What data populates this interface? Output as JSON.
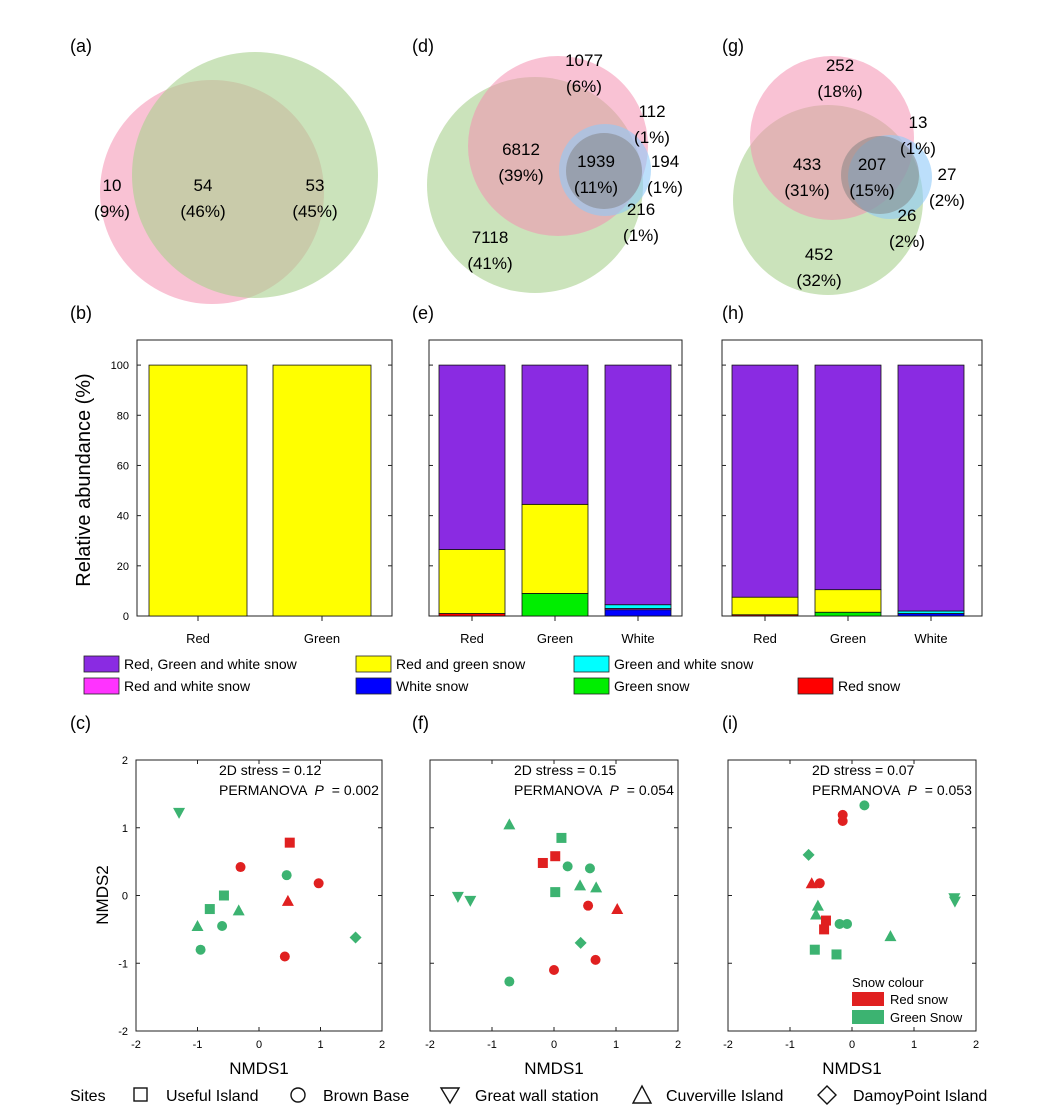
{
  "panels": {
    "a": "(a)",
    "b": "(b)",
    "c": "(c)",
    "d": "(d)",
    "e": "(e)",
    "f": "(f)",
    "g": "(g)",
    "h": "(h)",
    "i": "(i)"
  },
  "colors": {
    "pink": "#f48fb1",
    "green_circle": "#a9d18e",
    "blue_circle": "#90caf9",
    "grey_circle": "#7f7f7f",
    "all": "#8a2be2",
    "red_green": "#ffff00",
    "green_white": "#00ffff",
    "red_white": "#ff33ff",
    "white": "#0000ff",
    "green": "#00ee00",
    "red": "#ff0000",
    "red_snow_marker": "#e02020",
    "green_snow_marker": "#3cb371"
  },
  "venn": {
    "a": {
      "regions": [
        {
          "count": "10",
          "pct": "(9%)"
        },
        {
          "count": "54",
          "pct": "(46%)"
        },
        {
          "count": "53",
          "pct": "(45%)"
        }
      ]
    },
    "d": {
      "regions": [
        {
          "count": "1077",
          "pct": "(6%)"
        },
        {
          "count": "112",
          "pct": "(1%)"
        },
        {
          "count": "6812",
          "pct": "(39%)"
        },
        {
          "count": "1939",
          "pct": "(11%)"
        },
        {
          "count": "194",
          "pct": "(1%)"
        },
        {
          "count": "216",
          "pct": "(1%)"
        },
        {
          "count": "7118",
          "pct": "(41%)"
        }
      ]
    },
    "g": {
      "regions": [
        {
          "count": "252",
          "pct": "(18%)"
        },
        {
          "count": "13",
          "pct": "(1%)"
        },
        {
          "count": "433",
          "pct": "(31%)"
        },
        {
          "count": "207",
          "pct": "(15%)"
        },
        {
          "count": "27",
          "pct": "(2%)"
        },
        {
          "count": "26",
          "pct": "(2%)"
        },
        {
          "count": "452",
          "pct": "(32%)"
        }
      ]
    }
  },
  "legend_categories": [
    {
      "label": "Red, Green and white snow",
      "color": "#8a2be2"
    },
    {
      "label": "Red and green snow",
      "color": "#ffff00"
    },
    {
      "label": "Green and white snow",
      "color": "#00ffff"
    },
    {
      "label": "Red and white snow",
      "color": "#ff33ff"
    },
    {
      "label": "White snow",
      "color": "#0000ff"
    },
    {
      "label": "Green snow",
      "color": "#00ee00"
    },
    {
      "label": "Red snow",
      "color": "#ff0000"
    }
  ],
  "bar_axis": {
    "ylabel": "Relative abundance (%)",
    "ylim": [
      0,
      110
    ],
    "yticks": [
      "0",
      "20",
      "40",
      "60",
      "80",
      "100"
    ]
  },
  "nmds_axis": {
    "xlabel": "NMDS1",
    "ylabel": "NMDS2",
    "xticks": [
      "-2",
      "-1",
      "0",
      "1",
      "2"
    ],
    "yticks": [
      "-2",
      "-1",
      "0",
      "1",
      "2"
    ]
  },
  "nmds_text": {
    "c": {
      "stress": "2D stress = 0.12",
      "perm": "PERMANOVA",
      "p": "P",
      "pval": "= 0.002"
    },
    "f": {
      "stress": "2D stress = 0.15",
      "perm": "PERMANOVA",
      "p": "P",
      "pval": "= 0.054"
    },
    "i": {
      "stress": "2D stress = 0.07",
      "perm": "PERMANOVA",
      "p": "P",
      "pval": "= 0.053"
    }
  },
  "snow_legend": {
    "title": "Snow colour",
    "items": [
      {
        "label": "Red snow",
        "color": "#e02020"
      },
      {
        "label": "Green Snow",
        "color": "#3cb371"
      }
    ]
  },
  "sites_legend": {
    "title": "Sites",
    "items": [
      {
        "label": "Useful Island",
        "shape": "square"
      },
      {
        "label": "Brown Base",
        "shape": "circle"
      },
      {
        "label": "Great wall station",
        "shape": "triangle-down"
      },
      {
        "label": "Cuverville Island",
        "shape": "triangle-up"
      },
      {
        "label": "DamoyPoint Island",
        "shape": "diamond"
      }
    ]
  },
  "chart_data": [
    {
      "type": "bar",
      "panel": "b",
      "categories": [
        "Red",
        "Green"
      ],
      "stacked": true,
      "ylabel": "Relative abundance (%)",
      "ylim": [
        0,
        110
      ],
      "series": [
        {
          "name": "Red, Green and white snow",
          "values": [
            0,
            0
          ]
        },
        {
          "name": "Red and green snow",
          "values": [
            100,
            100
          ]
        },
        {
          "name": "Green and white snow",
          "values": [
            0,
            0
          ]
        },
        {
          "name": "Red and white snow",
          "values": [
            0,
            0
          ]
        },
        {
          "name": "White snow",
          "values": [
            0,
            0
          ]
        },
        {
          "name": "Green snow",
          "values": [
            0,
            0
          ]
        },
        {
          "name": "Red snow",
          "values": [
            0,
            0
          ]
        }
      ]
    },
    {
      "type": "bar",
      "panel": "e",
      "categories": [
        "Red",
        "Green",
        "White"
      ],
      "stacked": true,
      "ylim": [
        0,
        110
      ],
      "series": [
        {
          "name": "Red, Green and white snow",
          "values": [
            73.5,
            55.5,
            95.5
          ]
        },
        {
          "name": "Red and green snow",
          "values": [
            25.5,
            35.5,
            0
          ]
        },
        {
          "name": "Green and white snow",
          "values": [
            0,
            0,
            1.5
          ]
        },
        {
          "name": "Red and white snow",
          "values": [
            0,
            0,
            0.5
          ]
        },
        {
          "name": "White snow",
          "values": [
            0,
            0,
            2.5
          ]
        },
        {
          "name": "Green snow",
          "values": [
            0,
            9,
            0
          ]
        },
        {
          "name": "Red snow",
          "values": [
            1,
            0,
            0
          ]
        }
      ]
    },
    {
      "type": "bar",
      "panel": "h",
      "categories": [
        "Red",
        "Green",
        "White"
      ],
      "stacked": true,
      "ylim": [
        0,
        110
      ],
      "series": [
        {
          "name": "Red, Green and white snow",
          "values": [
            92.5,
            89.5,
            98
          ]
        },
        {
          "name": "Red and green snow",
          "values": [
            7,
            9,
            0
          ]
        },
        {
          "name": "Green and white snow",
          "values": [
            0,
            0,
            1
          ]
        },
        {
          "name": "Red and white snow",
          "values": [
            0,
            0,
            0
          ]
        },
        {
          "name": "White snow",
          "values": [
            0,
            0,
            1
          ]
        },
        {
          "name": "Green snow",
          "values": [
            0,
            1.5,
            0
          ]
        },
        {
          "name": "Red snow",
          "values": [
            0.5,
            0,
            0
          ]
        }
      ]
    },
    {
      "type": "scatter",
      "panel": "c",
      "xlim": [
        -2,
        2
      ],
      "ylim": [
        -2,
        2
      ],
      "xlabel": "NMDS1",
      "ylabel": "NMDS2",
      "points": [
        {
          "x": -1.3,
          "y": 1.22,
          "site": "triangle-down",
          "color": "green"
        },
        {
          "x": 0.5,
          "y": 0.78,
          "site": "square",
          "color": "red"
        },
        {
          "x": -0.3,
          "y": 0.42,
          "site": "circle",
          "color": "red"
        },
        {
          "x": 0.45,
          "y": 0.3,
          "site": "circle",
          "color": "green"
        },
        {
          "x": 0.97,
          "y": 0.18,
          "site": "circle",
          "color": "red"
        },
        {
          "x": -0.57,
          "y": 0.0,
          "site": "square",
          "color": "green"
        },
        {
          "x": 0.47,
          "y": -0.08,
          "site": "triangle-up",
          "color": "red"
        },
        {
          "x": -0.8,
          "y": -0.2,
          "site": "square",
          "color": "green"
        },
        {
          "x": -0.33,
          "y": -0.22,
          "site": "triangle-up",
          "color": "green"
        },
        {
          "x": -1.0,
          "y": -0.45,
          "site": "triangle-up",
          "color": "green"
        },
        {
          "x": -0.6,
          "y": -0.45,
          "site": "circle",
          "color": "green"
        },
        {
          "x": -0.95,
          "y": -0.8,
          "site": "circle",
          "color": "green"
        },
        {
          "x": 0.42,
          "y": -0.9,
          "site": "circle",
          "color": "red"
        },
        {
          "x": 1.57,
          "y": -0.62,
          "site": "diamond",
          "color": "green"
        }
      ]
    },
    {
      "type": "scatter",
      "panel": "f",
      "xlim": [
        -2,
        2
      ],
      "ylim": [
        -2,
        2
      ],
      "xlabel": "NMDS1",
      "points": [
        {
          "x": -0.72,
          "y": 1.05,
          "site": "triangle-up",
          "color": "green"
        },
        {
          "x": 0.12,
          "y": 0.85,
          "site": "square",
          "color": "green"
        },
        {
          "x": 0.02,
          "y": 0.58,
          "site": "square",
          "color": "red"
        },
        {
          "x": -0.18,
          "y": 0.48,
          "site": "square",
          "color": "red"
        },
        {
          "x": 0.22,
          "y": 0.43,
          "site": "circle",
          "color": "green"
        },
        {
          "x": 0.58,
          "y": 0.4,
          "site": "circle",
          "color": "green"
        },
        {
          "x": 0.42,
          "y": 0.15,
          "site": "triangle-up",
          "color": "green"
        },
        {
          "x": 0.68,
          "y": 0.12,
          "site": "triangle-up",
          "color": "green"
        },
        {
          "x": 0.02,
          "y": 0.05,
          "site": "square",
          "color": "green"
        },
        {
          "x": -1.55,
          "y": -0.02,
          "site": "triangle-down",
          "color": "green"
        },
        {
          "x": -1.35,
          "y": -0.08,
          "site": "triangle-down",
          "color": "green"
        },
        {
          "x": 0.55,
          "y": -0.15,
          "site": "circle",
          "color": "red"
        },
        {
          "x": 1.02,
          "y": -0.2,
          "site": "triangle-up",
          "color": "red"
        },
        {
          "x": 0.43,
          "y": -0.7,
          "site": "diamond",
          "color": "green"
        },
        {
          "x": 0.67,
          "y": -0.95,
          "site": "circle",
          "color": "red"
        },
        {
          "x": 0.0,
          "y": -1.1,
          "site": "circle",
          "color": "red"
        },
        {
          "x": -0.72,
          "y": -1.27,
          "site": "circle",
          "color": "green"
        }
      ]
    },
    {
      "type": "scatter",
      "panel": "i",
      "xlim": [
        -2,
        2
      ],
      "ylim": [
        -2,
        2
      ],
      "xlabel": "NMDS1",
      "points": [
        {
          "x": 0.2,
          "y": 1.33,
          "site": "circle",
          "color": "green"
        },
        {
          "x": -0.15,
          "y": 1.19,
          "site": "circle",
          "color": "red"
        },
        {
          "x": -0.15,
          "y": 1.1,
          "site": "circle",
          "color": "red"
        },
        {
          "x": -0.7,
          "y": 0.6,
          "site": "diamond",
          "color": "green"
        },
        {
          "x": -0.65,
          "y": 0.18,
          "site": "triangle-up",
          "color": "red"
        },
        {
          "x": -0.52,
          "y": 0.18,
          "site": "circle",
          "color": "red"
        },
        {
          "x": -0.55,
          "y": -0.15,
          "site": "triangle-up",
          "color": "green"
        },
        {
          "x": -0.58,
          "y": -0.28,
          "site": "triangle-up",
          "color": "green"
        },
        {
          "x": -0.42,
          "y": -0.37,
          "site": "square",
          "color": "red"
        },
        {
          "x": -0.45,
          "y": -0.5,
          "site": "square",
          "color": "red"
        },
        {
          "x": -0.2,
          "y": -0.42,
          "site": "circle",
          "color": "green"
        },
        {
          "x": -0.08,
          "y": -0.42,
          "site": "circle",
          "color": "green"
        },
        {
          "x": 0.62,
          "y": -0.6,
          "site": "triangle-up",
          "color": "green"
        },
        {
          "x": -0.6,
          "y": -0.8,
          "site": "square",
          "color": "green"
        },
        {
          "x": -0.25,
          "y": -0.87,
          "site": "square",
          "color": "green"
        },
        {
          "x": 1.65,
          "y": -0.04,
          "site": "triangle-down",
          "color": "green"
        },
        {
          "x": 1.66,
          "y": -0.09,
          "site": "triangle-down",
          "color": "green"
        }
      ]
    }
  ]
}
